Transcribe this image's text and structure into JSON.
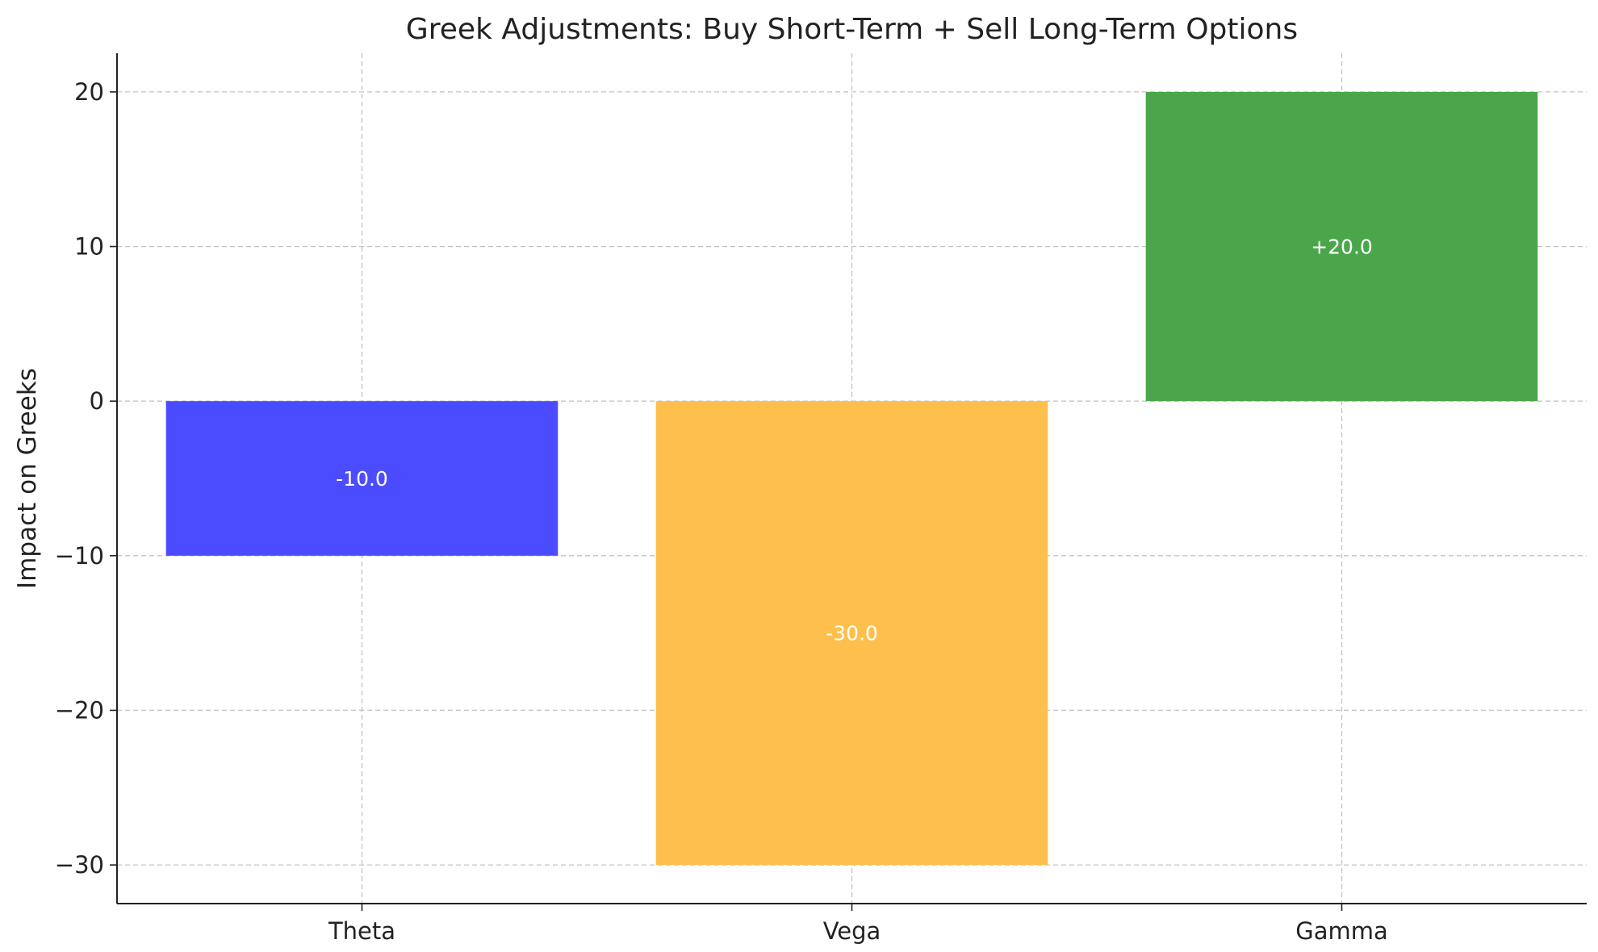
{
  "chart_data": {
    "type": "bar",
    "title": "Greek Adjustments: Buy Short-Term + Sell Long-Term Options",
    "xlabel": "",
    "ylabel": "Impact on Greeks",
    "categories": [
      "Theta",
      "Vega",
      "Gamma"
    ],
    "values": [
      -10,
      -30,
      20
    ],
    "value_labels": [
      "-10.0",
      "-30.0",
      "+20.0"
    ],
    "bar_colors": [
      "#4b4bff",
      "#ffbf4c",
      "#4ba64b"
    ],
    "ylim": [
      -32.5,
      22.5
    ],
    "yticks": [
      -30,
      -20,
      -10,
      0,
      10,
      20
    ],
    "ytick_labels": [
      "−30",
      "−20",
      "−10",
      "0",
      "10",
      "20"
    ],
    "grid": true,
    "legend": "none"
  }
}
